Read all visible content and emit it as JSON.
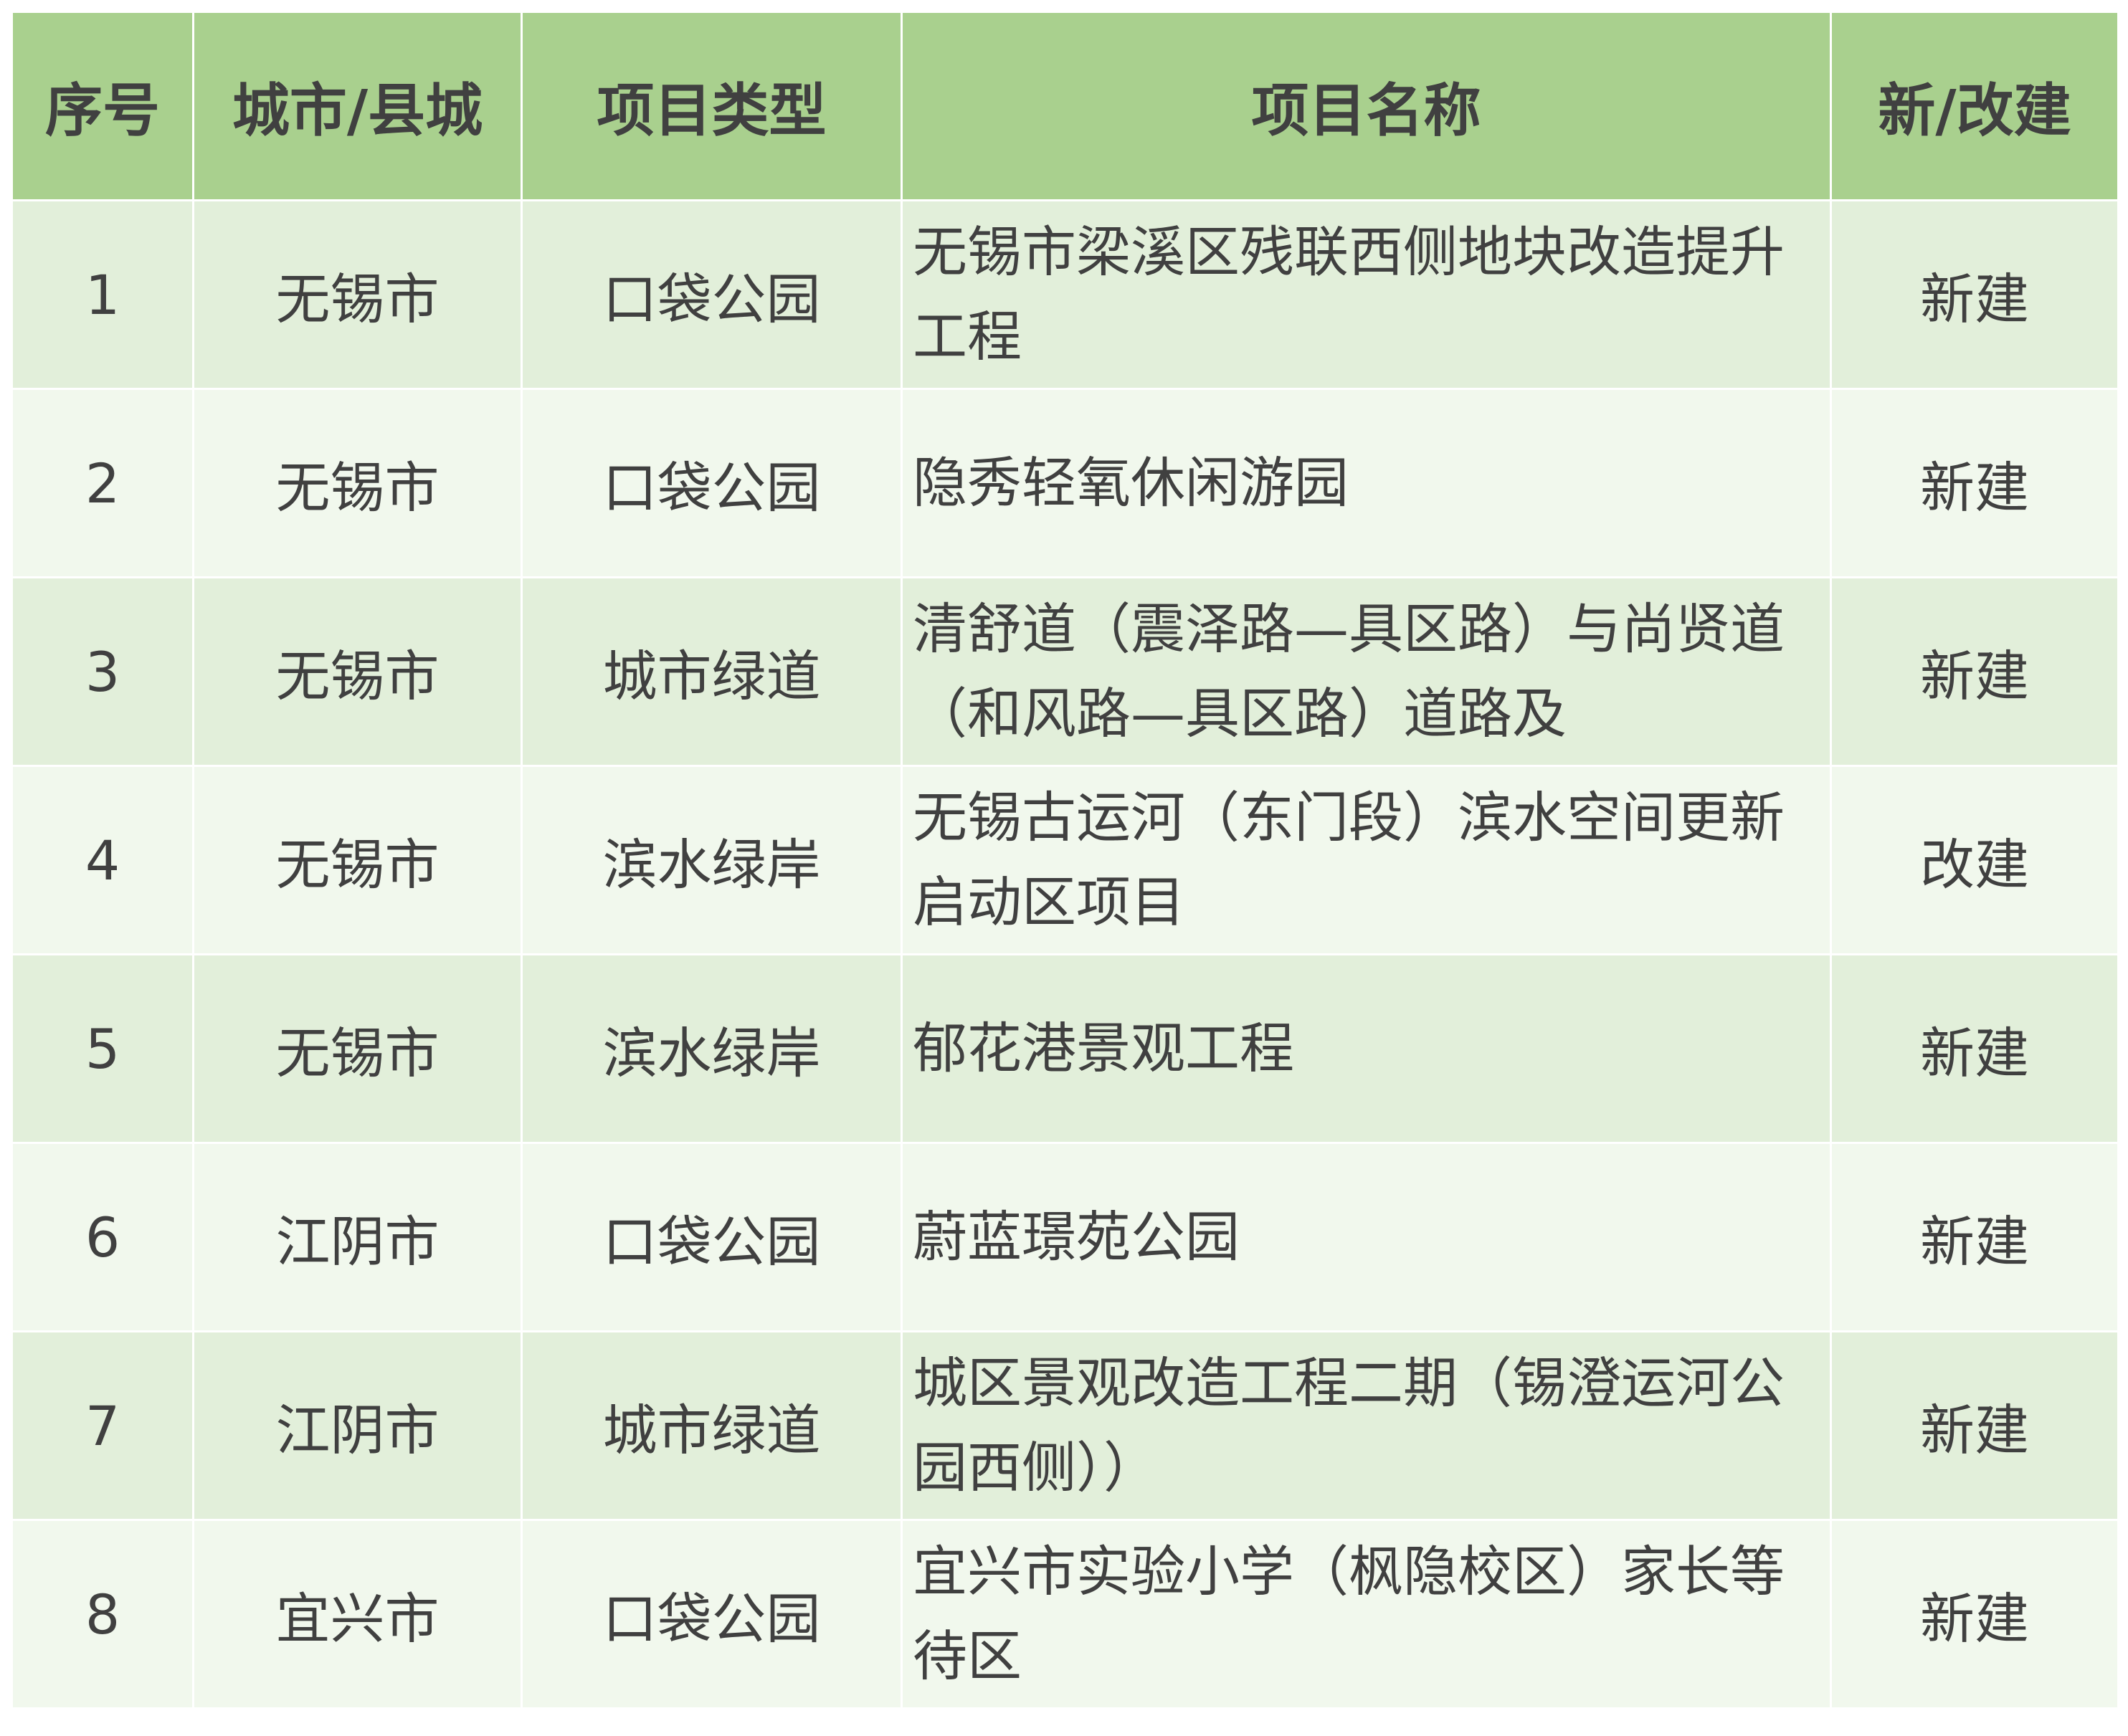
{
  "headers": {
    "index": "序号",
    "city": "城市/县城",
    "type": "项目类型",
    "name": "项目名称",
    "build": "新/改建"
  },
  "rows": [
    {
      "index": "1",
      "city": "无锡市",
      "type": "口袋公园",
      "name": "无锡市梁溪区残联西侧地块改造提升工程",
      "build": "新建"
    },
    {
      "index": "2",
      "city": "无锡市",
      "type": "口袋公园",
      "name": "隐秀轻氧休闲游园",
      "build": "新建"
    },
    {
      "index": "3",
      "city": "无锡市",
      "type": "城市绿道",
      "name": "清舒道（震泽路—具区路）与尚贤道（和风路—具区路）道路及",
      "build": "新建"
    },
    {
      "index": "4",
      "city": "无锡市",
      "type": "滨水绿岸",
      "name": "无锡古运河（东门段）滨水空间更新启动区项目",
      "build": "改建"
    },
    {
      "index": "5",
      "city": "无锡市",
      "type": "滨水绿岸",
      "name": "郁花港景观工程",
      "build": "新建"
    },
    {
      "index": "6",
      "city": "江阴市",
      "type": "口袋公园",
      "name": "蔚蓝璟苑公园",
      "build": "新建"
    },
    {
      "index": "7",
      "city": "江阴市",
      "type": "城市绿道",
      "name": "城区景观改造工程二期（锡澄运河公园西侧））",
      "build": "新建"
    },
    {
      "index": "8",
      "city": "宜兴市",
      "type": "口袋公园",
      "name": "宜兴市实验小学（枫隐校区）家长等待区",
      "build": "新建"
    }
  ],
  "colors": {
    "header_bg": "#a9d08e",
    "row_odd_bg": "#e2efda",
    "row_even_bg": "#f1f8ed",
    "text": "#404040"
  }
}
